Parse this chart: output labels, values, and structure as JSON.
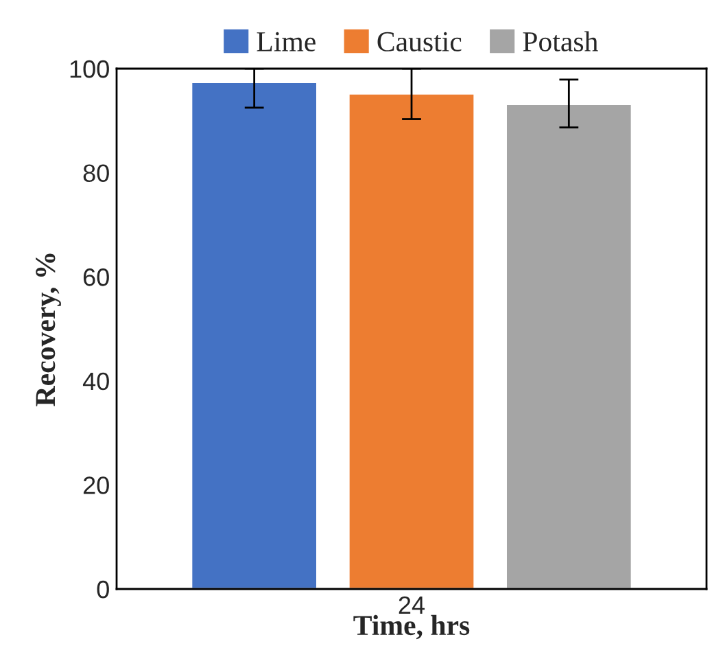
{
  "chart_data": {
    "type": "bar",
    "xlabel": "Time, hrs",
    "ylabel": "Recovery, %",
    "categories": [
      "24"
    ],
    "series": [
      {
        "name": "Lime",
        "color": "#4472c4",
        "values": [
          97.4
        ],
        "errors": [
          [
            92.5,
            100
          ]
        ]
      },
      {
        "name": "Caustic",
        "color": "#ed7d31",
        "values": [
          95.2
        ],
        "errors": [
          [
            90.3,
            100
          ]
        ]
      },
      {
        "name": "Potash",
        "color": "#a5a5a5",
        "values": [
          93.2
        ],
        "errors": [
          [
            88.7,
            97.9
          ]
        ]
      }
    ],
    "ylim": [
      0,
      100
    ],
    "yticks": [
      0,
      20,
      40,
      60,
      80,
      100
    ],
    "grid": false,
    "legend": "top"
  }
}
